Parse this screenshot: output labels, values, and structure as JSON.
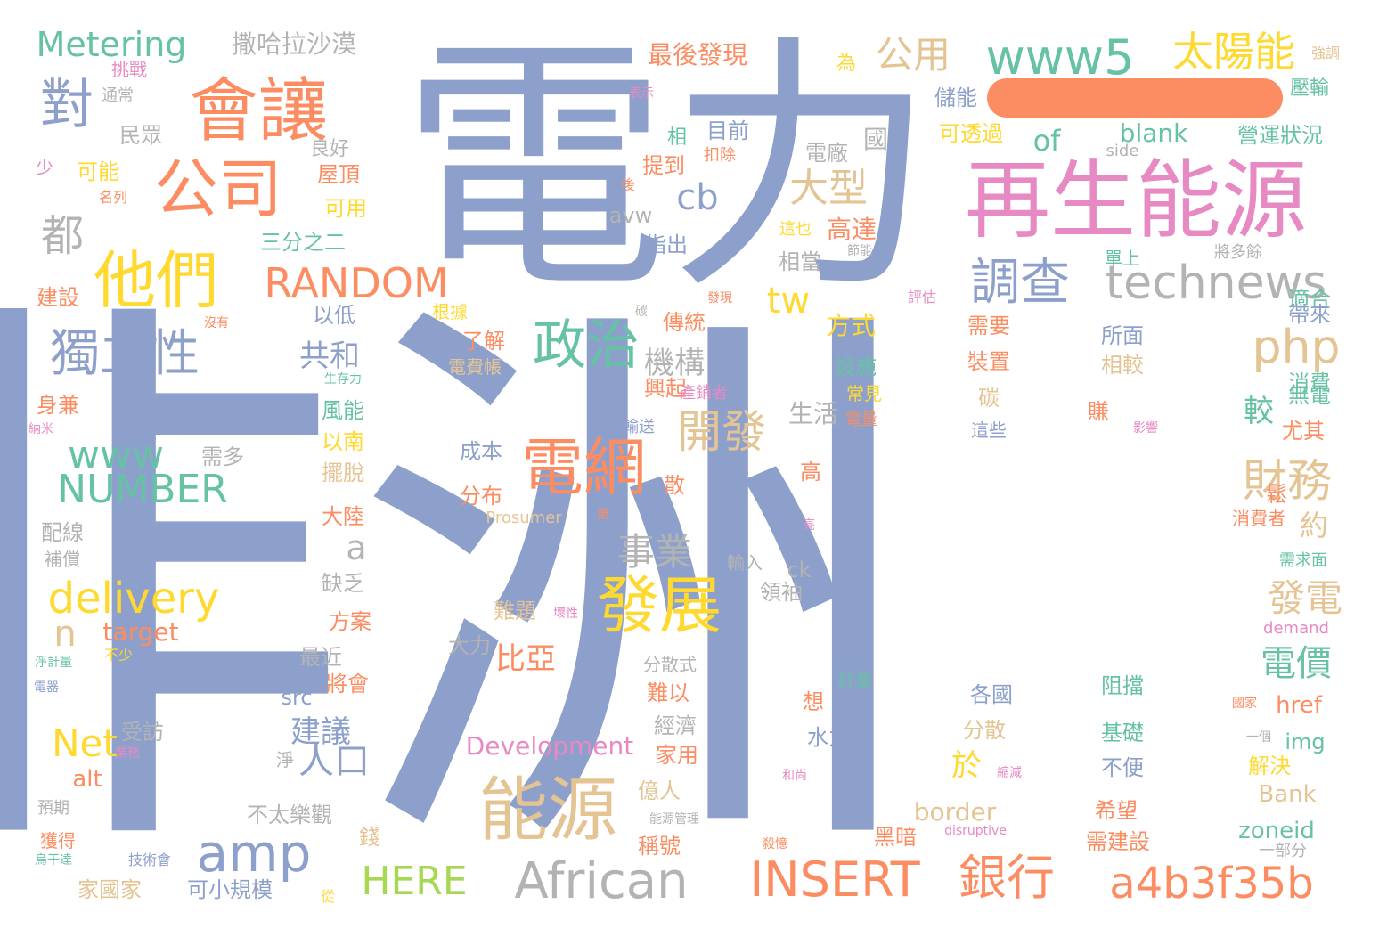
{
  "colors": {
    "blue": "#8da0cb",
    "orange": "#fc8d62",
    "green": "#66c2a5",
    "pink": "#e78ac3",
    "lime": "#a6d854",
    "yellow": "#ffd92f",
    "tan": "#e5c494",
    "gray": "#b3b3b3"
  },
  "dash_color": "#fc8d62",
  "words": [
    {
      "t": "非洲",
      "c": "blue"
    },
    {
      "t": "電力",
      "c": "blue"
    },
    {
      "t": "再生能源",
      "c": "pink"
    },
    {
      "t": "會讓",
      "c": "orange"
    },
    {
      "t": "公司",
      "c": "orange"
    },
    {
      "t": "他們",
      "c": "yellow"
    },
    {
      "t": "能源",
      "c": "tan"
    },
    {
      "t": "電網",
      "c": "orange"
    },
    {
      "t": "發展",
      "c": "yellow"
    },
    {
      "t": "政治",
      "c": "green"
    },
    {
      "t": "獨立性",
      "c": "blue"
    },
    {
      "t": "調查",
      "c": "blue"
    },
    {
      "t": "technews",
      "c": "gray"
    },
    {
      "t": "www5",
      "c": "green"
    },
    {
      "t": "太陽能",
      "c": "yellow"
    },
    {
      "t": "對",
      "c": "blue"
    },
    {
      "t": "都",
      "c": "gray"
    },
    {
      "t": "RANDOM",
      "c": "orange"
    },
    {
      "t": "amp",
      "c": "blue"
    },
    {
      "t": "African",
      "c": "gray"
    },
    {
      "t": "INSERT",
      "c": "orange"
    },
    {
      "t": "銀行",
      "c": "orange"
    },
    {
      "t": "a4b3f35b",
      "c": "orange"
    },
    {
      "t": "delivery",
      "c": "yellow"
    },
    {
      "t": "NUMBER",
      "c": "green"
    },
    {
      "t": "www",
      "c": "green"
    },
    {
      "t": "Net",
      "c": "yellow"
    },
    {
      "t": "HERE",
      "c": "lime"
    },
    {
      "t": "開發",
      "c": "tan"
    },
    {
      "t": "財務",
      "c": "tan"
    },
    {
      "t": "php",
      "c": "tan"
    },
    {
      "t": "發電",
      "c": "tan"
    },
    {
      "t": "電價",
      "c": "green"
    },
    {
      "t": "事業",
      "c": "gray"
    },
    {
      "t": "人口",
      "c": "blue"
    },
    {
      "t": "大型",
      "c": "tan"
    },
    {
      "t": "公用",
      "c": "tan"
    },
    {
      "t": "Metering",
      "c": "green"
    },
    {
      "t": "撒哈拉沙漠",
      "c": "gray"
    },
    {
      "t": "cb",
      "c": "blue"
    },
    {
      "t": "tw",
      "c": "yellow"
    },
    {
      "t": "機構",
      "c": "gray"
    },
    {
      "t": "共和",
      "c": "blue"
    },
    {
      "t": "a",
      "c": "gray"
    },
    {
      "t": "n",
      "c": "tan"
    },
    {
      "t": "比亞",
      "c": "orange"
    },
    {
      "t": "於",
      "c": "yellow"
    },
    {
      "t": "建議",
      "c": "blue"
    },
    {
      "t": "較",
      "c": "green"
    },
    {
      "t": "約",
      "c": "tan"
    },
    {
      "t": "of",
      "c": "green"
    },
    {
      "t": "Development",
      "c": "pink"
    },
    {
      "t": "target",
      "c": "orange"
    },
    {
      "t": "src",
      "c": "blue"
    },
    {
      "t": "alt",
      "c": "orange"
    },
    {
      "t": "ck",
      "c": "gray"
    },
    {
      "t": "avw",
      "c": "gray"
    },
    {
      "t": "blank",
      "c": "green"
    },
    {
      "t": "side",
      "c": "gray"
    },
    {
      "t": "Prosumer",
      "c": "tan"
    },
    {
      "t": "demand",
      "c": "pink"
    },
    {
      "t": "border",
      "c": "tan"
    },
    {
      "t": "zoneid",
      "c": "green"
    },
    {
      "t": "Bank",
      "c": "tan"
    },
    {
      "t": "img",
      "c": "green"
    },
    {
      "t": "href",
      "c": "orange"
    },
    {
      "t": "disruptive",
      "c": "pink"
    },
    {
      "t": "最後發現",
      "c": "orange"
    },
    {
      "t": "為",
      "c": "yellow"
    },
    {
      "t": "強調",
      "c": "tan"
    },
    {
      "t": "挑戰",
      "c": "pink"
    },
    {
      "t": "通常",
      "c": "gray"
    },
    {
      "t": "民眾",
      "c": "gray"
    },
    {
      "t": "良好",
      "c": "gray"
    },
    {
      "t": "表示",
      "c": "pink"
    },
    {
      "t": "儲能",
      "c": "blue"
    },
    {
      "t": "壓輸",
      "c": "green"
    },
    {
      "t": "目前",
      "c": "blue"
    },
    {
      "t": "相",
      "c": "green"
    },
    {
      "t": "國",
      "c": "gray"
    },
    {
      "t": "營運狀況",
      "c": "green"
    },
    {
      "t": "可透過",
      "c": "yellow"
    },
    {
      "t": "少",
      "c": "pink"
    },
    {
      "t": "可能",
      "c": "yellow"
    },
    {
      "t": "屋頂",
      "c": "orange"
    },
    {
      "t": "提到",
      "c": "orange"
    },
    {
      "t": "扣除",
      "c": "orange"
    },
    {
      "t": "電廠",
      "c": "gray"
    },
    {
      "t": "名列",
      "c": "orange"
    },
    {
      "t": "可用",
      "c": "yellow"
    },
    {
      "t": "後",
      "c": "orange"
    },
    {
      "t": "這也",
      "c": "yellow"
    },
    {
      "t": "高達",
      "c": "orange"
    },
    {
      "t": "節能",
      "c": "gray"
    },
    {
      "t": "三分之二",
      "c": "green"
    },
    {
      "t": "指出",
      "c": "blue"
    },
    {
      "t": "相當",
      "c": "gray"
    },
    {
      "t": "單上",
      "c": "green"
    },
    {
      "t": "將多餘",
      "c": "gray"
    },
    {
      "t": "建設",
      "c": "orange"
    },
    {
      "t": "以低",
      "c": "blue"
    },
    {
      "t": "根據",
      "c": "yellow"
    },
    {
      "t": "發現",
      "c": "orange"
    },
    {
      "t": "碳",
      "c": "gray"
    },
    {
      "t": "沒有",
      "c": "orange"
    },
    {
      "t": "評估",
      "c": "pink"
    },
    {
      "t": "傳統",
      "c": "orange"
    },
    {
      "t": "方式",
      "c": "yellow"
    },
    {
      "t": "需要",
      "c": "orange"
    },
    {
      "t": "適合",
      "c": "green"
    },
    {
      "t": "帶來",
      "c": "blue"
    },
    {
      "t": "了解",
      "c": "orange"
    },
    {
      "t": "所面",
      "c": "blue"
    },
    {
      "t": "電費帳",
      "c": "tan"
    },
    {
      "t": "生存力",
      "c": "green"
    },
    {
      "t": "設施",
      "c": "green"
    },
    {
      "t": "裝置",
      "c": "orange"
    },
    {
      "t": "相較",
      "c": "tan"
    },
    {
      "t": "興起",
      "c": "orange"
    },
    {
      "t": "產銷者",
      "c": "pink"
    },
    {
      "t": "常見",
      "c": "yellow"
    },
    {
      "t": "碳",
      "c": "tan"
    },
    {
      "t": "消費",
      "c": "green"
    },
    {
      "t": "無電",
      "c": "green"
    },
    {
      "t": "身兼",
      "c": "orange"
    },
    {
      "t": "風能",
      "c": "green"
    },
    {
      "t": "電量",
      "c": "orange"
    },
    {
      "t": "生活",
      "c": "gray"
    },
    {
      "t": "賺",
      "c": "orange"
    },
    {
      "t": "輸送",
      "c": "blue"
    },
    {
      "t": "這些",
      "c": "blue"
    },
    {
      "t": "影響",
      "c": "pink"
    },
    {
      "t": "尤其",
      "c": "orange"
    },
    {
      "t": "納米",
      "c": "pink"
    },
    {
      "t": "以南",
      "c": "yellow"
    },
    {
      "t": "需多",
      "c": "gray"
    },
    {
      "t": "成本",
      "c": "blue"
    },
    {
      "t": "高",
      "c": "orange"
    },
    {
      "t": "擺脫",
      "c": "tan"
    },
    {
      "t": "散",
      "c": "orange"
    },
    {
      "t": "分布",
      "c": "orange"
    },
    {
      "t": "鬆",
      "c": "orange"
    },
    {
      "t": "大陸",
      "c": "orange"
    },
    {
      "t": "更",
      "c": "orange"
    },
    {
      "t": "亮",
      "c": "pink"
    },
    {
      "t": "消費者",
      "c": "orange"
    },
    {
      "t": "配線",
      "c": "gray"
    },
    {
      "t": "補償",
      "c": "gray"
    },
    {
      "t": "輸入",
      "c": "gray"
    },
    {
      "t": "需求面",
      "c": "green"
    },
    {
      "t": "缺乏",
      "c": "gray"
    },
    {
      "t": "領袖",
      "c": "gray"
    },
    {
      "t": "難題",
      "c": "tan"
    },
    {
      "t": "壞性",
      "c": "pink"
    },
    {
      "t": "方案",
      "c": "orange"
    },
    {
      "t": "大力",
      "c": "gray"
    },
    {
      "t": "淨計量",
      "c": "green"
    },
    {
      "t": "不少",
      "c": "yellow"
    },
    {
      "t": "最近",
      "c": "gray"
    },
    {
      "t": "分散式",
      "c": "gray"
    },
    {
      "t": "電器",
      "c": "blue"
    },
    {
      "t": "將會",
      "c": "orange"
    },
    {
      "t": "難以",
      "c": "orange"
    },
    {
      "t": "計量",
      "c": "green"
    },
    {
      "t": "各國",
      "c": "blue"
    },
    {
      "t": "阻擋",
      "c": "green"
    },
    {
      "t": "國家",
      "c": "orange"
    },
    {
      "t": "想",
      "c": "orange"
    },
    {
      "t": "受訪",
      "c": "gray"
    },
    {
      "t": "經濟",
      "c": "gray"
    },
    {
      "t": "水力",
      "c": "blue"
    },
    {
      "t": "分散",
      "c": "tan"
    },
    {
      "t": "基礎",
      "c": "green"
    },
    {
      "t": "一個",
      "c": "gray"
    },
    {
      "t": "業務",
      "c": "pink"
    },
    {
      "t": "淨",
      "c": "gray"
    },
    {
      "t": "家用",
      "c": "orange"
    },
    {
      "t": "解決",
      "c": "yellow"
    },
    {
      "t": "和尚",
      "c": "pink"
    },
    {
      "t": "縮減",
      "c": "pink"
    },
    {
      "t": "不便",
      "c": "blue"
    },
    {
      "t": "預期",
      "c": "gray"
    },
    {
      "t": "億人",
      "c": "tan"
    },
    {
      "t": "不太樂觀",
      "c": "gray"
    },
    {
      "t": "能源管理",
      "c": "gray"
    },
    {
      "t": "希望",
      "c": "orange"
    },
    {
      "t": "黑暗",
      "c": "orange"
    },
    {
      "t": "獲得",
      "c": "orange"
    },
    {
      "t": "錢",
      "c": "tan"
    },
    {
      "t": "稱號",
      "c": "orange"
    },
    {
      "t": "需建設",
      "c": "orange"
    },
    {
      "t": "一部分",
      "c": "gray"
    },
    {
      "t": "烏干達",
      "c": "green"
    },
    {
      "t": "技術會",
      "c": "blue"
    },
    {
      "t": "殺憶",
      "c": "orange"
    },
    {
      "t": "家國家",
      "c": "tan"
    },
    {
      "t": "可小規模",
      "c": "blue"
    },
    {
      "t": "從",
      "c": "yellow"
    }
  ]
}
